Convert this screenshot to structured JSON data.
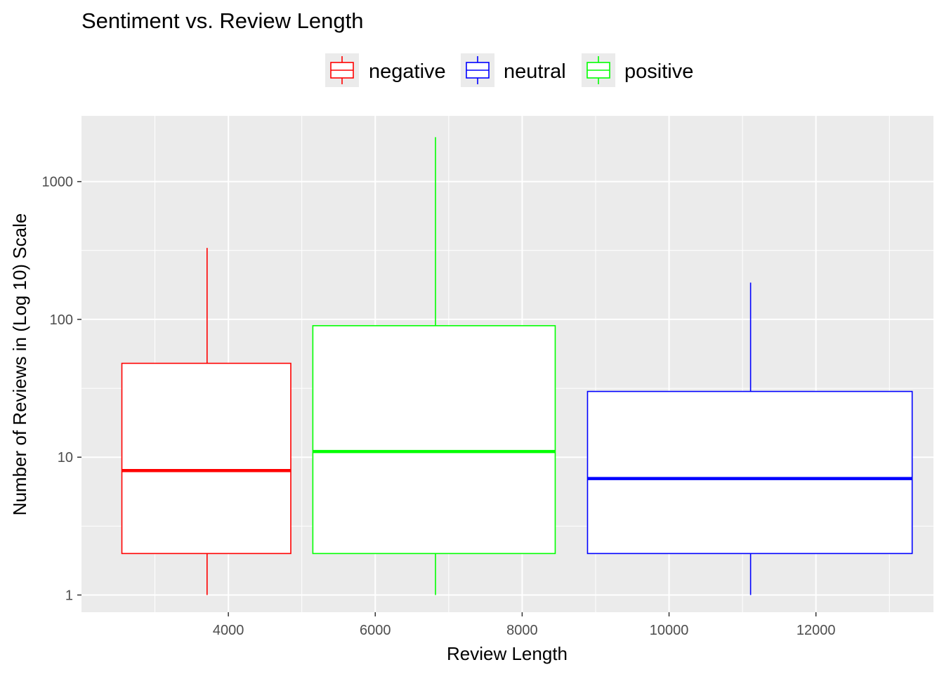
{
  "chart_data": {
    "type": "boxplot",
    "title": "Sentiment vs. Review Length",
    "xlabel": "Review Length",
    "ylabel": "Number of Reviews in (Log 10) Scale",
    "x_scale": "linear",
    "y_scale": "log10",
    "xlim": [
      2000,
      13600
    ],
    "ylim": [
      0.75,
      3000
    ],
    "x_ticks": [
      4000,
      6000,
      8000,
      10000,
      12000
    ],
    "y_ticks": [
      1,
      10,
      100,
      1000
    ],
    "x_tick_labels": [
      "4000",
      "6000",
      "8000",
      "10000",
      "12000"
    ],
    "y_tick_labels": [
      "1",
      "10",
      "100",
      "1000"
    ],
    "grid": true,
    "legend_position": "top",
    "legend": [
      {
        "name": "negative",
        "color": "#ff0000"
      },
      {
        "name": "neutral",
        "color": "#0000ff"
      },
      {
        "name": "positive",
        "color": "#00ff00"
      }
    ],
    "series": [
      {
        "name": "negative",
        "color": "#ff0000",
        "x_center": 3710,
        "x_range": [
          2550,
          4850
        ],
        "whisker_low": 1,
        "q1": 2,
        "median": 8,
        "q3": 48,
        "whisker_high": 330
      },
      {
        "name": "positive",
        "color": "#00ff00",
        "x_center": 6820,
        "x_range": [
          5150,
          8450
        ],
        "whisker_low": 1,
        "q1": 2,
        "median": 11,
        "q3": 90,
        "whisker_high": 2100
      },
      {
        "name": "neutral",
        "color": "#0000ff",
        "x_center": 11110,
        "x_range": [
          8890,
          13310
        ],
        "whisker_low": 1,
        "q1": 2,
        "median": 7,
        "q3": 30,
        "whisker_high": 185
      }
    ]
  }
}
